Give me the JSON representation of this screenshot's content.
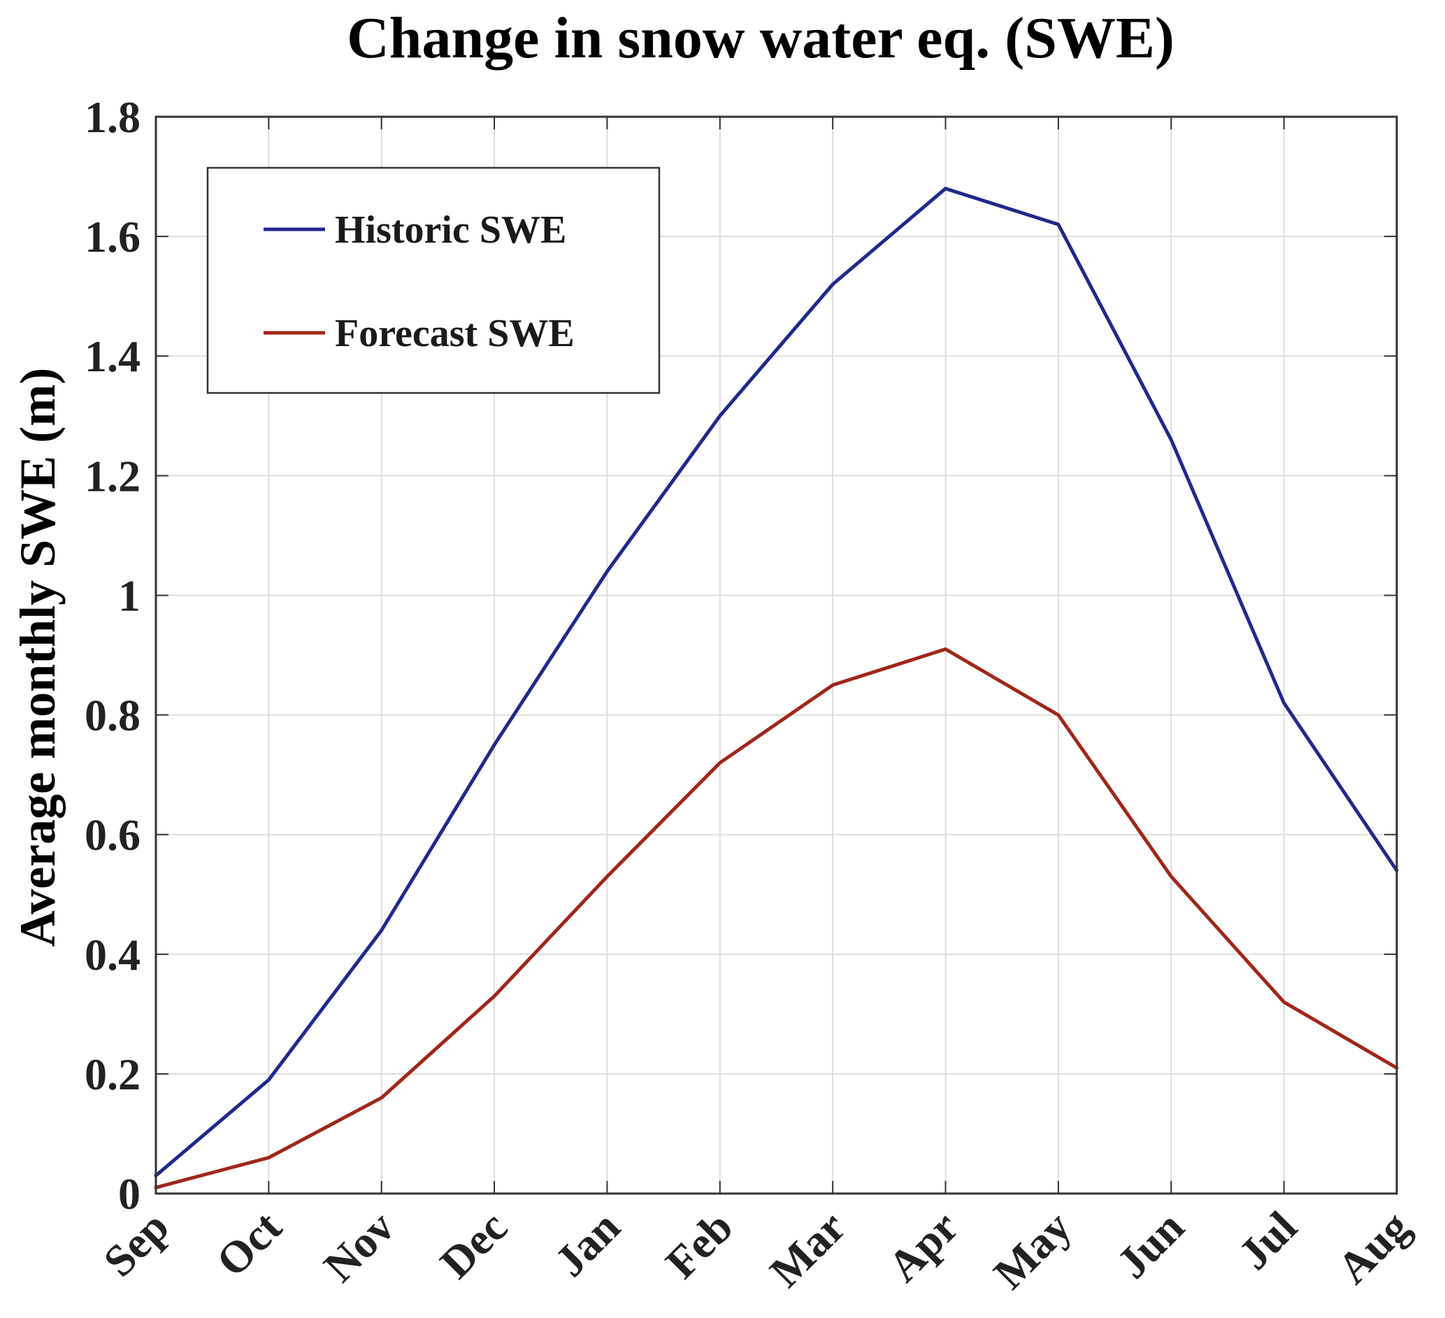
{
  "chart_data": {
    "type": "line",
    "title": "Change in snow water eq. (SWE)",
    "xlabel": "",
    "ylabel": "Average monthly SWE (m)",
    "categories": [
      "Sep",
      "Oct",
      "Nov",
      "Dec",
      "Jan",
      "Feb",
      "Mar",
      "Apr",
      "May",
      "Jun",
      "Jul",
      "Aug"
    ],
    "ylim": [
      0,
      1.8
    ],
    "yticks": [
      0,
      0.2,
      0.4,
      0.6,
      0.8,
      1,
      1.2,
      1.4,
      1.6,
      1.8
    ],
    "ytick_labels": [
      "0",
      "0.2",
      "0.4",
      "0.6",
      "0.8",
      "1",
      "1.2",
      "1.4",
      "1.6",
      "1.8"
    ],
    "grid": true,
    "legend_position": "top-left",
    "series": [
      {
        "name": "Historic SWE",
        "color": "#1f2a8c",
        "values": [
          0.03,
          0.19,
          0.44,
          0.75,
          1.04,
          1.3,
          1.52,
          1.68,
          1.62,
          1.26,
          0.82,
          0.54
        ]
      },
      {
        "name": "Forecast SWE",
        "color": "#a0271a",
        "values": [
          0.01,
          0.06,
          0.16,
          0.33,
          0.53,
          0.72,
          0.85,
          0.91,
          0.8,
          0.53,
          0.32,
          0.21
        ]
      }
    ]
  }
}
